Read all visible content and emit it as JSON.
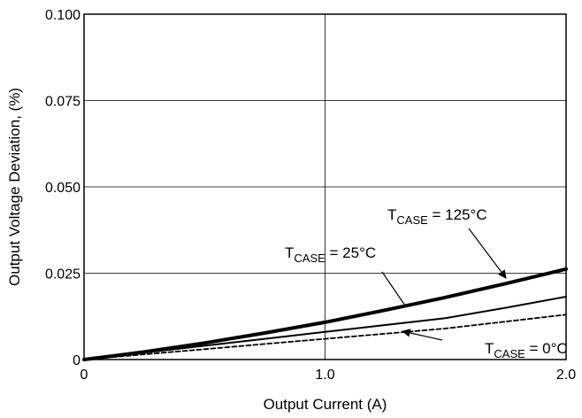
{
  "chart_data": {
    "type": "line",
    "xlabel": "Output Current (A)",
    "ylabel": "Output Voltage Deviation, (%)",
    "xlim": [
      0,
      2.0
    ],
    "ylim": [
      0,
      0.1
    ],
    "x_ticks": [
      "0",
      "1.0",
      "2.0"
    ],
    "y_ticks": [
      "0",
      "0.025",
      "0.050",
      "0.075",
      "0.100"
    ],
    "grid": true,
    "series": [
      {
        "name": "T_CASE = 125°C",
        "style": "thick-solid",
        "x": [
          0,
          0.25,
          0.5,
          0.75,
          1.0,
          1.25,
          1.5,
          1.75,
          2.0
        ],
        "y": [
          0.0,
          0.0022,
          0.0048,
          0.0077,
          0.0108,
          0.0143,
          0.018,
          0.022,
          0.0262
        ]
      },
      {
        "name": "T_CASE = 25°C",
        "style": "solid",
        "x": [
          0,
          0.25,
          0.5,
          0.75,
          1.0,
          1.25,
          1.5,
          1.75,
          2.0
        ],
        "y": [
          0.0,
          0.002,
          0.004,
          0.006,
          0.008,
          0.01,
          0.012,
          0.015,
          0.0182
        ]
      },
      {
        "name": "T_CASE = 0°C",
        "style": "dashed",
        "x": [
          0,
          0.25,
          0.5,
          0.75,
          1.0,
          1.25,
          1.5,
          1.75,
          2.0
        ],
        "y": [
          0.0,
          0.0015,
          0.003,
          0.0045,
          0.006,
          0.0075,
          0.009,
          0.011,
          0.013
        ]
      }
    ],
    "annotations": [
      {
        "main": "T",
        "sub": "CASE",
        "rest": " = 125°C"
      },
      {
        "main": "T",
        "sub": "CASE",
        "rest": " = 25°C"
      },
      {
        "main": "T",
        "sub": "CASE",
        "rest": " = 0°C"
      }
    ]
  }
}
